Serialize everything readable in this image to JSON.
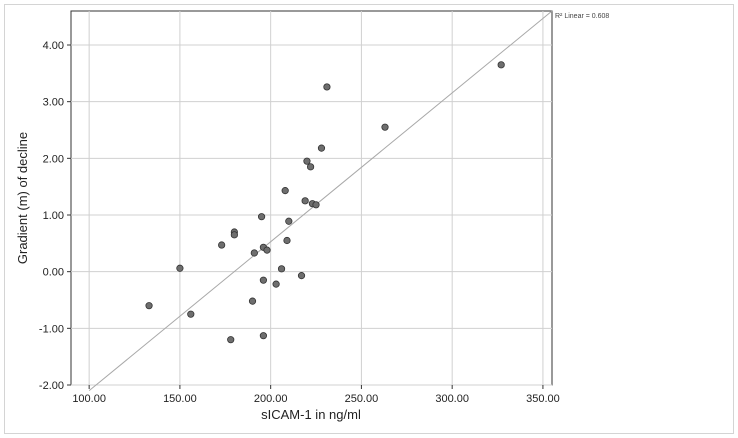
{
  "chart_data": {
    "type": "scatter",
    "title": "",
    "xlabel": "sICAM-1 in ng/ml",
    "ylabel": "Gradient (m) of decline",
    "xlim": [
      90,
      355
    ],
    "ylim": [
      -2,
      4.6
    ],
    "x_ticks": [
      100,
      150,
      200,
      250,
      300,
      350
    ],
    "x_tick_labels": [
      "100.00",
      "150.00",
      "200.00",
      "250.00",
      "300.00",
      "350.00"
    ],
    "y_ticks": [
      -2,
      -1,
      0,
      1,
      2,
      3,
      4
    ],
    "y_tick_labels": [
      "-2.00",
      "-1.00",
      "0.00",
      "1.00",
      "2.00",
      "3.00",
      "4.00"
    ],
    "grid": true,
    "fit_line": {
      "label": "R² Linear = 0.608",
      "from": [
        100,
        -2.1
      ],
      "to": [
        355,
        4.6
      ]
    },
    "series": [
      {
        "points": [
          [
            133,
            -0.6
          ],
          [
            150,
            0.06
          ],
          [
            156,
            -0.75
          ],
          [
            173,
            0.47
          ],
          [
            178,
            -1.2
          ],
          [
            180,
            0.7
          ],
          [
            180,
            0.65
          ],
          [
            190,
            -0.52
          ],
          [
            191,
            0.33
          ],
          [
            195,
            0.97
          ],
          [
            196,
            -0.15
          ],
          [
            196,
            -1.13
          ],
          [
            196,
            0.43
          ],
          [
            198,
            0.38
          ],
          [
            203,
            -0.22
          ],
          [
            206,
            0.05
          ],
          [
            208,
            1.43
          ],
          [
            209,
            0.55
          ],
          [
            210,
            0.89
          ],
          [
            217,
            -0.07
          ],
          [
            219,
            1.25
          ],
          [
            220,
            1.95
          ],
          [
            222,
            1.85
          ],
          [
            223,
            1.2
          ],
          [
            225,
            1.18
          ],
          [
            228,
            2.18
          ],
          [
            231,
            3.26
          ],
          [
            263,
            2.55
          ],
          [
            327,
            3.65
          ]
        ]
      }
    ]
  }
}
